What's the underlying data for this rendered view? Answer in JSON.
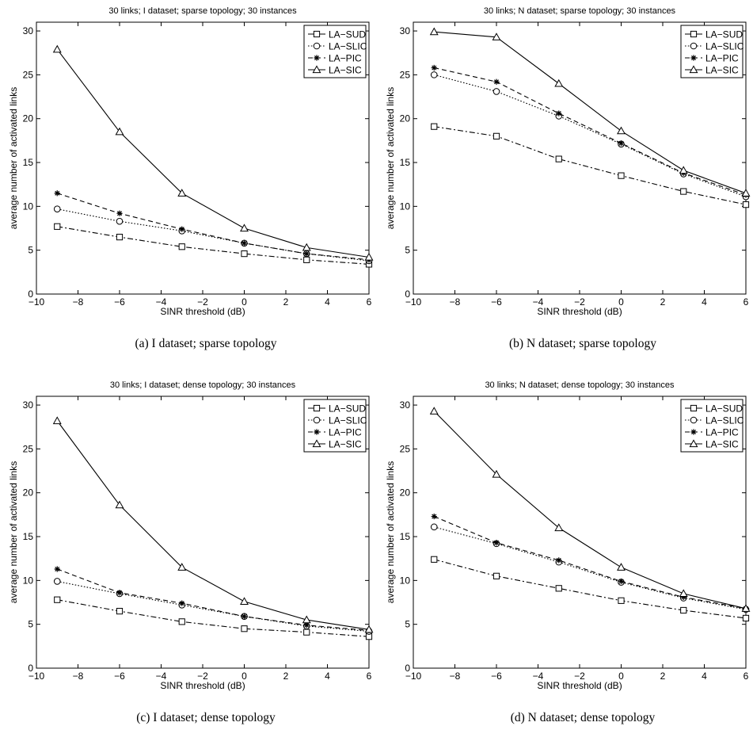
{
  "chart_data": [
    {
      "type": "line",
      "title": "30 links; I dataset; sparse topology; 30 instances",
      "caption": "(a) I dataset; sparse topology",
      "xlabel": "SINR threshold (dB)",
      "ylabel": "average number of activated links",
      "xlim": [
        -10,
        6
      ],
      "ylim": [
        0,
        31
      ],
      "xticks": [
        -10,
        -8,
        -6,
        -4,
        -2,
        0,
        2,
        4,
        6
      ],
      "yticks": [
        0,
        5,
        10,
        15,
        20,
        25,
        30
      ],
      "grid": false,
      "legend_position": "top-right",
      "x": [
        -9,
        -6,
        -3,
        0,
        3,
        6
      ],
      "series": [
        {
          "name": "LA−SUD",
          "values": [
            7.7,
            6.5,
            5.4,
            4.6,
            3.9,
            3.4
          ]
        },
        {
          "name": "LA−SLIC",
          "values": [
            9.7,
            8.3,
            7.2,
            5.8,
            4.6,
            3.8
          ]
        },
        {
          "name": "LA−PIC",
          "values": [
            11.5,
            9.2,
            7.4,
            5.8,
            4.6,
            3.9
          ]
        },
        {
          "name": "LA−SIC",
          "values": [
            27.9,
            18.5,
            11.5,
            7.5,
            5.3,
            4.2
          ]
        }
      ]
    },
    {
      "type": "line",
      "title": "30 links; N dataset; sparse topology; 30 instances",
      "caption": "(b) N dataset; sparse topology",
      "xlabel": "SINR threshold (dB)",
      "ylabel": "average number of activated links",
      "xlim": [
        -10,
        6
      ],
      "ylim": [
        0,
        31
      ],
      "xticks": [
        -10,
        -8,
        -6,
        -4,
        -2,
        0,
        2,
        4,
        6
      ],
      "yticks": [
        0,
        5,
        10,
        15,
        20,
        25,
        30
      ],
      "grid": false,
      "legend_position": "top-right",
      "x": [
        -9,
        -6,
        -3,
        0,
        3,
        6
      ],
      "series": [
        {
          "name": "LA−SUD",
          "values": [
            19.1,
            18.0,
            15.4,
            13.5,
            11.7,
            10.2
          ]
        },
        {
          "name": "LA−SLIC",
          "values": [
            25.0,
            23.1,
            20.3,
            17.1,
            13.7,
            11.1
          ]
        },
        {
          "name": "LA−PIC",
          "values": [
            25.8,
            24.2,
            20.6,
            17.2,
            13.8,
            11.3
          ]
        },
        {
          "name": "LA−SIC",
          "values": [
            29.9,
            29.3,
            24.0,
            18.6,
            14.1,
            11.5
          ]
        }
      ]
    },
    {
      "type": "line",
      "title": "30 links; I dataset; dense topology; 30 instances",
      "caption": "(c) I dataset; dense topology",
      "xlabel": "SINR threshold (dB)",
      "ylabel": "average number of activated links",
      "xlim": [
        -10,
        6
      ],
      "ylim": [
        0,
        31
      ],
      "xticks": [
        -10,
        -8,
        -6,
        -4,
        -2,
        0,
        2,
        4,
        6
      ],
      "yticks": [
        0,
        5,
        10,
        15,
        20,
        25,
        30
      ],
      "grid": false,
      "legend_position": "top-right",
      "x": [
        -9,
        -6,
        -3,
        0,
        3,
        6
      ],
      "series": [
        {
          "name": "LA−SUD",
          "values": [
            7.8,
            6.5,
            5.3,
            4.5,
            4.1,
            3.6
          ]
        },
        {
          "name": "LA−SLIC",
          "values": [
            9.9,
            8.5,
            7.2,
            5.9,
            4.8,
            4.2
          ]
        },
        {
          "name": "LA−PIC",
          "values": [
            11.3,
            8.6,
            7.4,
            5.9,
            4.9,
            4.3
          ]
        },
        {
          "name": "LA−SIC",
          "values": [
            28.2,
            18.6,
            11.5,
            7.6,
            5.5,
            4.4
          ]
        }
      ]
    },
    {
      "type": "line",
      "title": "30 links; N dataset; dense topology; 30 instances",
      "caption": "(d) N dataset; dense topology",
      "xlabel": "SINR threshold (dB)",
      "ylabel": "average number of activated links",
      "xlim": [
        -10,
        6
      ],
      "ylim": [
        0,
        31
      ],
      "xticks": [
        -10,
        -8,
        -6,
        -4,
        -2,
        0,
        2,
        4,
        6
      ],
      "yticks": [
        0,
        5,
        10,
        15,
        20,
        25,
        30
      ],
      "grid": false,
      "legend_position": "top-right",
      "x": [
        -9,
        -6,
        -3,
        0,
        3,
        6
      ],
      "series": [
        {
          "name": "LA−SUD",
          "values": [
            12.4,
            10.5,
            9.1,
            7.7,
            6.6,
            5.7
          ]
        },
        {
          "name": "LA−SLIC",
          "values": [
            16.1,
            14.2,
            12.1,
            9.8,
            8.0,
            6.7
          ]
        },
        {
          "name": "LA−PIC",
          "values": [
            17.3,
            14.3,
            12.3,
            9.9,
            8.1,
            6.8
          ]
        },
        {
          "name": "LA−SIC",
          "values": [
            29.3,
            22.1,
            16.0,
            11.5,
            8.5,
            6.8
          ]
        }
      ]
    }
  ],
  "series_styles": [
    {
      "marker": "square",
      "dash": "dashdot",
      "color": "#000000"
    },
    {
      "marker": "circle",
      "dash": "dotted",
      "color": "#000000"
    },
    {
      "marker": "star",
      "dash": "dashed",
      "color": "#000000"
    },
    {
      "marker": "triangle",
      "dash": "solid",
      "color": "#000000"
    }
  ]
}
